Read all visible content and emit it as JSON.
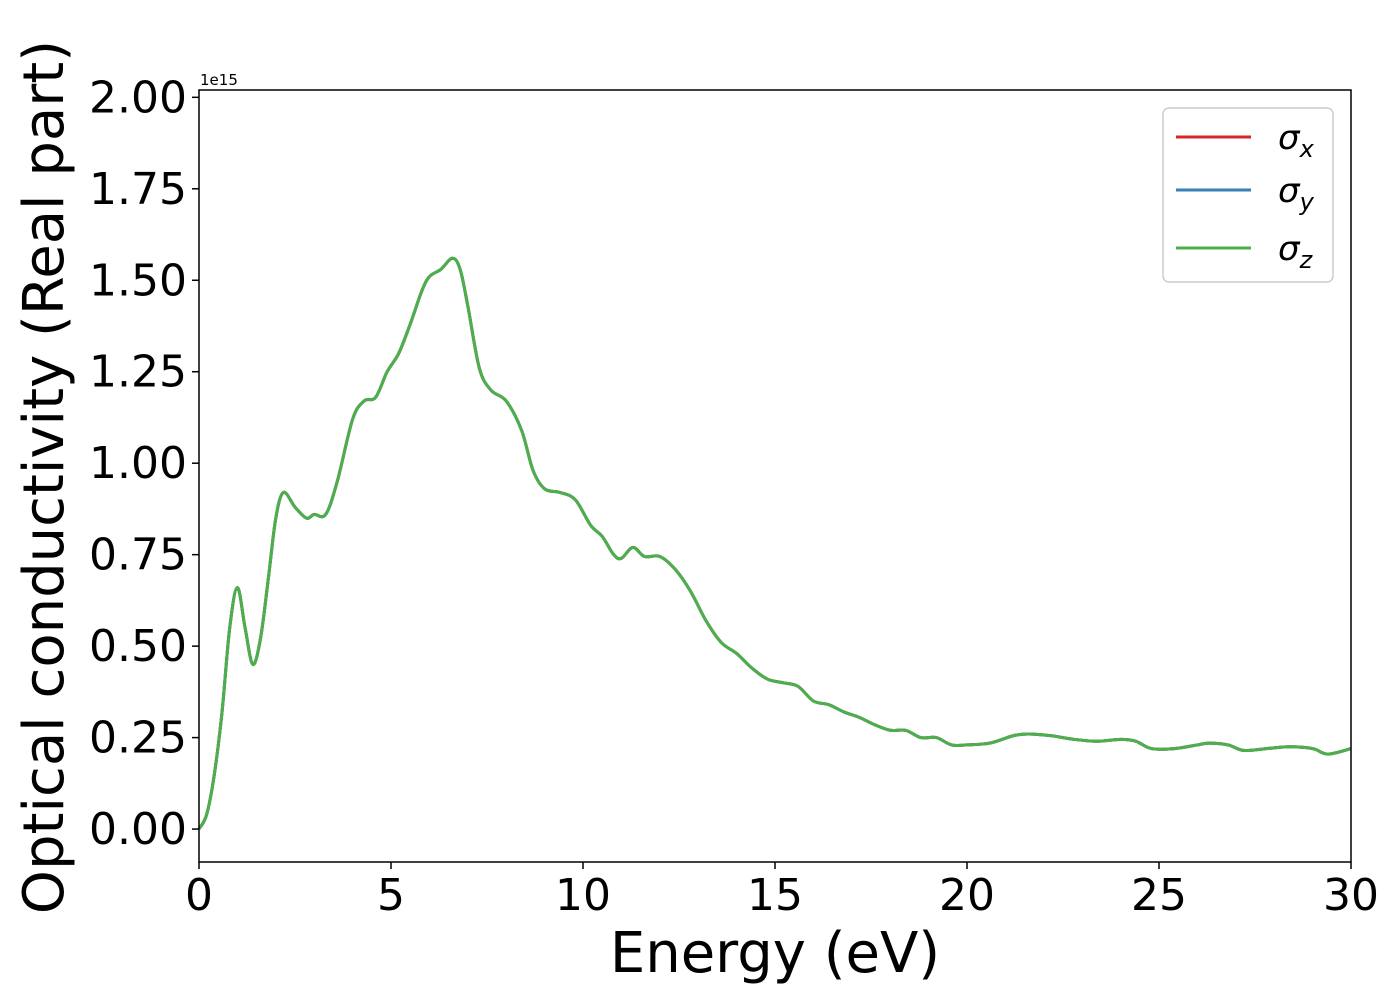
{
  "chart_data": {
    "type": "line",
    "xlabel": "Energy (eV)",
    "ylabel": "Optical conductivity (Real part)",
    "y_offset_text": "1e15",
    "xlim": [
      0,
      30
    ],
    "ylim": [
      -0.09,
      2.02
    ],
    "x_ticks": [
      0,
      5,
      10,
      15,
      20,
      25,
      30
    ],
    "x_tick_labels": [
      "0",
      "5",
      "10",
      "15",
      "20",
      "25",
      "30"
    ],
    "y_ticks": [
      0.0,
      0.25,
      0.5,
      0.75,
      1.0,
      1.25,
      1.5,
      1.75,
      2.0
    ],
    "y_tick_labels": [
      "0.00",
      "0.25",
      "0.50",
      "0.75",
      "1.00",
      "1.25",
      "1.50",
      "1.75",
      "2.00"
    ],
    "grid": false,
    "legend_position": "top-right",
    "series": [
      {
        "name": "σx",
        "color": "#d62728",
        "values_ref": "shared"
      },
      {
        "name": "σy",
        "color": "#3a7fb5",
        "values_ref": "shared"
      },
      {
        "name": "σz",
        "color": "#4daf4a",
        "values_ref": "shared"
      }
    ],
    "x": [
      0,
      0.2,
      0.4,
      0.6,
      0.8,
      1.0,
      1.2,
      1.4,
      1.6,
      1.8,
      2.0,
      2.2,
      2.5,
      2.8,
      3.0,
      3.3,
      3.6,
      4.0,
      4.3,
      4.6,
      4.9,
      5.2,
      5.5,
      5.8,
      6.0,
      6.3,
      6.6,
      6.8,
      7.0,
      7.3,
      7.6,
      8.0,
      8.4,
      8.7,
      9.0,
      9.4,
      9.8,
      10.2,
      10.5,
      10.8,
      11.0,
      11.3,
      11.6,
      12.0,
      12.4,
      12.8,
      13.2,
      13.6,
      14.0,
      14.4,
      14.8,
      15.2,
      15.6,
      16.0,
      16.4,
      16.8,
      17.2,
      17.6,
      18.0,
      18.4,
      18.8,
      19.2,
      19.6,
      20.0,
      20.6,
      21.2,
      21.6,
      22.2,
      22.8,
      23.4,
      24.0,
      24.4,
      24.8,
      25.4,
      26.0,
      26.3,
      26.8,
      27.2,
      27.8,
      28.4,
      29.0,
      29.4,
      30.0
    ],
    "y": [
      0.0,
      0.04,
      0.15,
      0.32,
      0.55,
      0.66,
      0.55,
      0.45,
      0.52,
      0.68,
      0.85,
      0.92,
      0.88,
      0.85,
      0.86,
      0.86,
      0.95,
      1.12,
      1.17,
      1.18,
      1.25,
      1.3,
      1.38,
      1.47,
      1.51,
      1.53,
      1.56,
      1.53,
      1.43,
      1.26,
      1.2,
      1.17,
      1.09,
      0.98,
      0.93,
      0.92,
      0.9,
      0.83,
      0.8,
      0.75,
      0.74,
      0.77,
      0.745,
      0.745,
      0.71,
      0.65,
      0.57,
      0.51,
      0.48,
      0.44,
      0.41,
      0.4,
      0.39,
      0.35,
      0.34,
      0.32,
      0.305,
      0.285,
      0.27,
      0.27,
      0.25,
      0.25,
      0.23,
      0.23,
      0.235,
      0.255,
      0.26,
      0.255,
      0.245,
      0.24,
      0.245,
      0.24,
      0.22,
      0.22,
      0.23,
      0.235,
      0.23,
      0.215,
      0.22,
      0.225,
      0.22,
      0.205,
      0.22
    ]
  }
}
